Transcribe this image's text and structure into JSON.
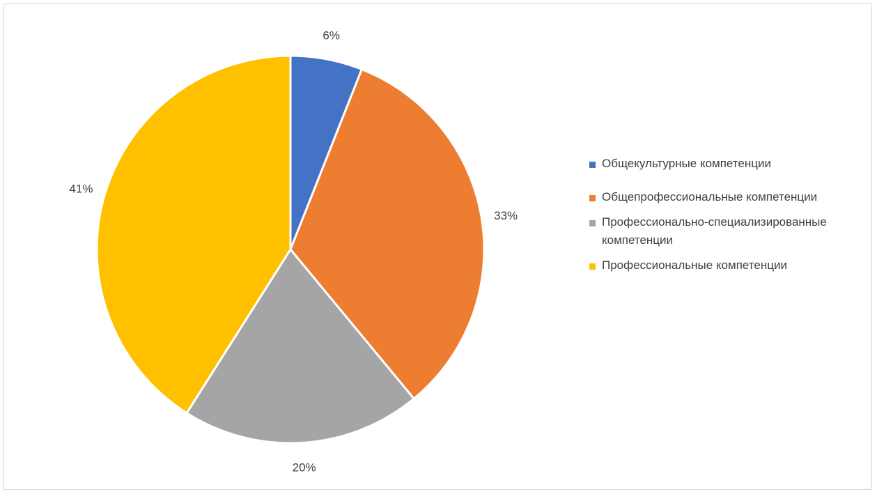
{
  "chart_data": {
    "type": "pie",
    "slices": [
      {
        "name": "Общекультурные компетенции",
        "value": 6,
        "label": "6%",
        "color": "#4472C4"
      },
      {
        "name": "Общепрофессиональные компетенции",
        "value": 33,
        "label": "33%",
        "color": "#ED7D31"
      },
      {
        "name": "Профессионально-специализированные компетенции",
        "value": 20,
        "label": "20%",
        "color": "#A5A5A5"
      },
      {
        "name": "Профессиональные компетенции",
        "value": 41,
        "label": "41%",
        "color": "#FFC000"
      }
    ],
    "legend_position": "right",
    "start_angle": "top",
    "direction": "clockwise"
  },
  "legend": {
    "items": [
      {
        "text": "Общекультурные компетенции",
        "color": "#4472C4"
      },
      {
        "text": "Общепрофессиональные компетенции",
        "color": "#ED7D31"
      },
      {
        "text": "Профессионально-специализированные компетенции",
        "color": "#A5A5A5"
      },
      {
        "text": "Профессиональные компетенции",
        "color": "#FFC000"
      }
    ]
  }
}
